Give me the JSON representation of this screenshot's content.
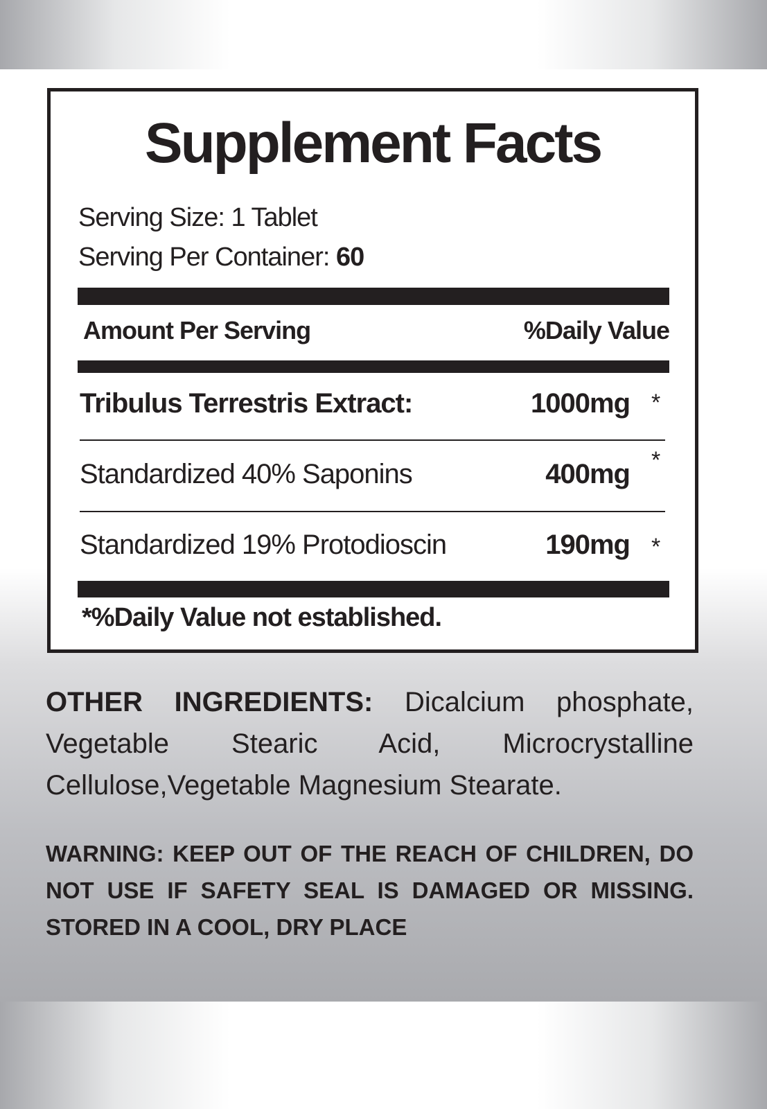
{
  "label": {
    "title": "Supplement Facts",
    "serving_size": "Serving Size: 1 Tablet",
    "servings_label": "Serving Per Container:",
    "servings_value": "60",
    "header": {
      "amount": "Amount Per Serving",
      "daily_value": "%Daily Value"
    },
    "rows": [
      {
        "name": "Tribulus Terrestris Extract:",
        "amount": "1000mg",
        "mark": "*"
      },
      {
        "name": "Standardized 40% Saponins",
        "amount": "400mg",
        "mark": "*"
      },
      {
        "name": "Standardized 19% Protodioscin",
        "amount": "190mg",
        "mark": "*"
      }
    ],
    "footnote": "*%Daily Value not established."
  },
  "other_ingredients": {
    "label": "OTHER INGREDIENTS:",
    "text": "Dicalcium phosphate, Vegetable Stearic Acid, Microcrystalline Cellulose,Vegetable Magnesium Stearate."
  },
  "warning": "WARNING: KEEP OUT OF THE REACH OF CHILDREN, DO NOT USE IF SAFETY SEAL IS DAMAGED OR MISSING. STORED IN A COOL, DRY PLACE"
}
